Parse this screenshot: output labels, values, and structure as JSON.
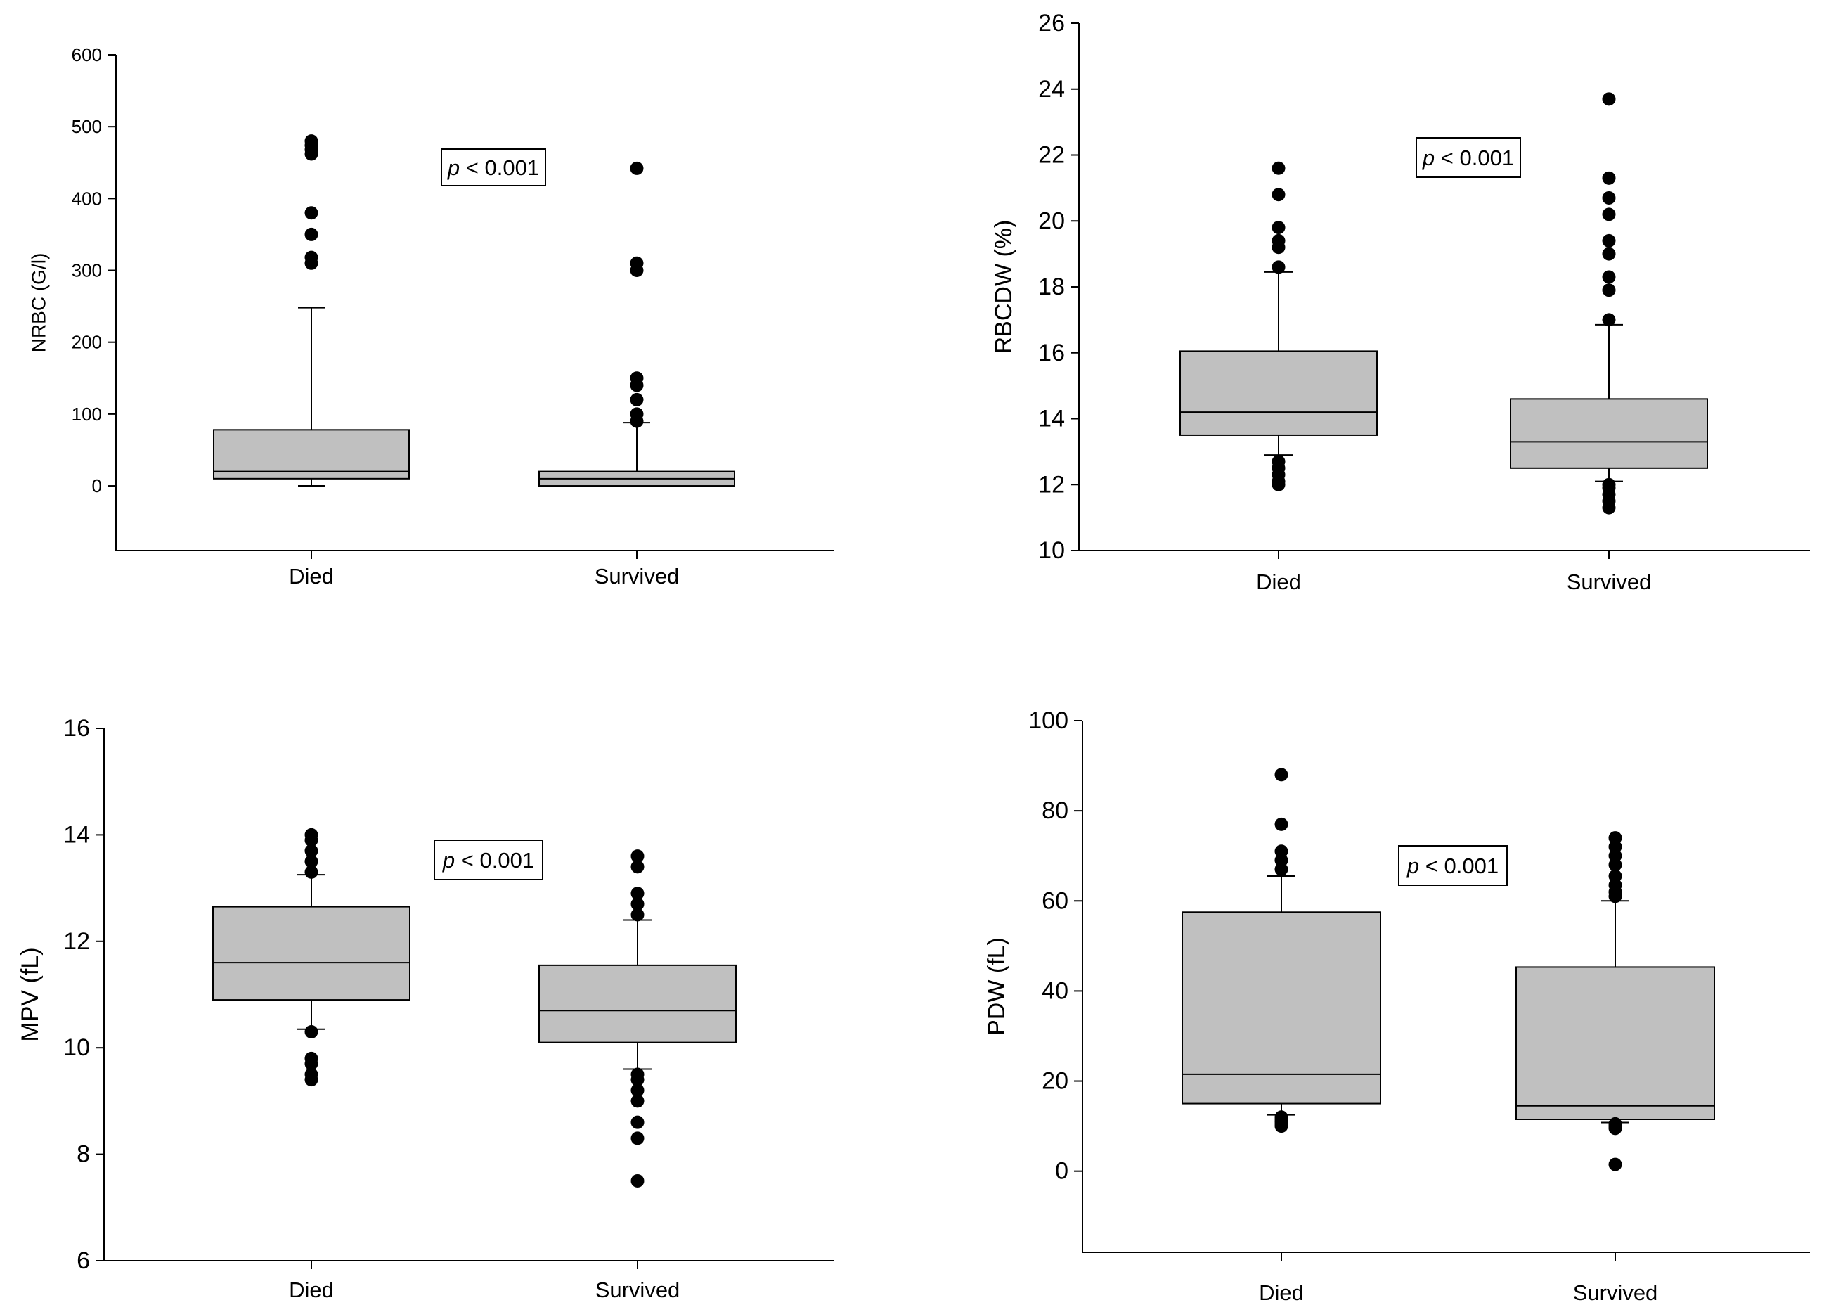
{
  "chart_data": [
    {
      "type": "box",
      "title": "",
      "xlabel": "",
      "ylabel": "NRBC (G/l)",
      "ylim": [
        -90,
        600
      ],
      "yticks": [
        0,
        100,
        200,
        300,
        400,
        500,
        600
      ],
      "ytick_labels": [
        "0",
        "100",
        "200",
        "300",
        "400",
        "500",
        "600"
      ],
      "categories": [
        "Died",
        "Survived"
      ],
      "annotation": {
        "italic": "p",
        "text": " < 0.001"
      },
      "boxes": [
        {
          "category": "Died",
          "whisker_low": 0,
          "q1": 10,
          "median": 20,
          "q3": 78,
          "whisker_high": 248,
          "outliers": [
            310,
            318,
            350,
            380,
            462,
            468,
            474,
            480
          ]
        },
        {
          "category": "Survived",
          "whisker_low": 0,
          "q1": 0,
          "median": 10,
          "q3": 20,
          "whisker_high": 88,
          "outliers": [
            90,
            100,
            120,
            140,
            150,
            300,
            310,
            442
          ]
        }
      ]
    },
    {
      "type": "box",
      "title": "",
      "xlabel": "",
      "ylabel": "RBCDW (%)",
      "ylim": [
        10,
        26
      ],
      "yticks": [
        10,
        12,
        14,
        16,
        18,
        20,
        22,
        24,
        26
      ],
      "ytick_labels": [
        "10",
        "12",
        "14",
        "16",
        "18",
        "20",
        "22",
        "24",
        "26"
      ],
      "categories": [
        "Died",
        "Survived"
      ],
      "annotation": {
        "italic": "p",
        "text": " < 0.001"
      },
      "boxes": [
        {
          "category": "Died",
          "whisker_low": 12.9,
          "q1": 13.5,
          "median": 14.2,
          "q3": 16.05,
          "whisker_high": 18.45,
          "outliers": [
            12.0,
            12.1,
            12.3,
            12.5,
            12.7,
            18.6,
            19.2,
            19.4,
            19.8,
            20.8,
            21.6
          ]
        },
        {
          "category": "Survived",
          "whisker_low": 12.1,
          "q1": 12.5,
          "median": 13.3,
          "q3": 14.6,
          "whisker_high": 16.85,
          "outliers": [
            11.3,
            11.5,
            11.7,
            11.9,
            12.0,
            17.0,
            17.9,
            18.3,
            19.0,
            19.4,
            20.2,
            20.7,
            21.3,
            23.7
          ]
        }
      ]
    },
    {
      "type": "box",
      "title": "",
      "xlabel": "",
      "ylabel": "MPV (fL)",
      "ylim": [
        6,
        16
      ],
      "yticks": [
        6,
        8,
        10,
        12,
        14,
        16
      ],
      "ytick_labels": [
        "6",
        "8",
        "10",
        "12",
        "14",
        "16"
      ],
      "categories": [
        "Died",
        "Survived"
      ],
      "annotation": {
        "italic": "p",
        "text": " < 0.001"
      },
      "boxes": [
        {
          "category": "Died",
          "whisker_low": 10.35,
          "q1": 10.9,
          "median": 11.6,
          "q3": 12.65,
          "whisker_high": 13.25,
          "outliers": [
            9.4,
            9.5,
            9.7,
            9.8,
            10.3,
            13.3,
            13.5,
            13.7,
            13.9,
            14.0
          ]
        },
        {
          "category": "Survived",
          "whisker_low": 9.6,
          "q1": 10.1,
          "median": 10.7,
          "q3": 11.55,
          "whisker_high": 12.4,
          "outliers": [
            7.5,
            8.3,
            8.6,
            9.0,
            9.2,
            9.4,
            9.5,
            12.5,
            12.7,
            12.9,
            13.4,
            13.6
          ]
        }
      ]
    },
    {
      "type": "box",
      "title": "",
      "xlabel": "",
      "ylabel": "PDW (fL)",
      "ylim": [
        -18,
        100
      ],
      "yticks": [
        0,
        20,
        40,
        60,
        80,
        100
      ],
      "ytick_labels": [
        "0",
        "20",
        "40",
        "60",
        "80",
        "100"
      ],
      "categories": [
        "Died",
        "Survived"
      ],
      "annotation": {
        "italic": "p",
        "text": " < 0.001"
      },
      "boxes": [
        {
          "category": "Died",
          "whisker_low": 12.5,
          "q1": 15,
          "median": 21.5,
          "q3": 57.5,
          "whisker_high": 65.5,
          "outliers": [
            10.0,
            10.5,
            11.0,
            11.5,
            12.0,
            67.0,
            69.0,
            71.0,
            77.0,
            88.0
          ]
        },
        {
          "category": "Survived",
          "whisker_low": 10.8,
          "q1": 11.5,
          "median": 14.5,
          "q3": 45.3,
          "whisker_high": 60.0,
          "outliers": [
            1.5,
            9.5,
            10.0,
            10.5,
            61.0,
            62.0,
            63.5,
            65.5,
            68.0,
            70.0,
            72.0,
            74.0
          ]
        }
      ]
    }
  ]
}
